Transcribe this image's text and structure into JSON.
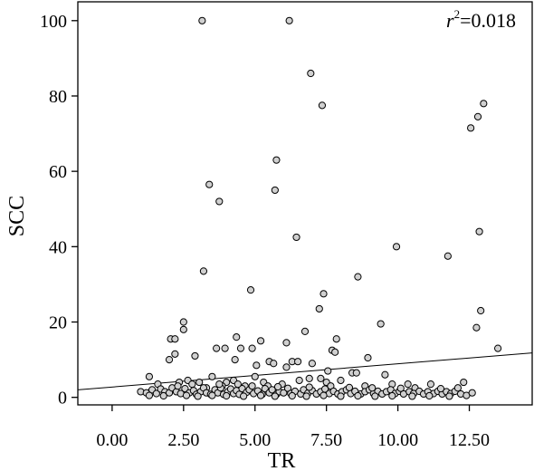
{
  "chart_data": {
    "type": "scatter",
    "title": "",
    "xlabel": "TR",
    "ylabel": "SCC",
    "xlim": [
      -1.2,
      14.7
    ],
    "ylim": [
      -2,
      105
    ],
    "xticks": [
      0,
      2.5,
      5,
      7.5,
      10,
      12.5
    ],
    "xtick_labels": [
      "0.00",
      "2.50",
      "5.00",
      "7.50",
      "10.00",
      "12.50"
    ],
    "yticks": [
      0,
      20,
      40,
      60,
      80,
      100
    ],
    "ytick_labels": [
      "0",
      "20",
      "40",
      "60",
      "80",
      "100"
    ],
    "grid": false,
    "legend": "none",
    "annotation": {
      "symbol": "r",
      "superscript": "2",
      "text": "=0.018"
    },
    "fit_line": {
      "x": [
        -1.2,
        14.7
      ],
      "y": [
        2.0,
        11.8
      ]
    },
    "marker_fill": "#d0d0d0",
    "marker_stroke": "#000000",
    "points": [
      [
        3.15,
        100
      ],
      [
        6.2,
        100
      ],
      [
        6.95,
        86
      ],
      [
        7.35,
        77.5
      ],
      [
        13.0,
        78
      ],
      [
        12.8,
        74.5
      ],
      [
        12.55,
        71.5
      ],
      [
        5.75,
        63
      ],
      [
        3.4,
        56.5
      ],
      [
        3.75,
        52
      ],
      [
        5.7,
        55
      ],
      [
        12.85,
        44
      ],
      [
        6.45,
        42.5
      ],
      [
        9.95,
        40
      ],
      [
        11.75,
        37.5
      ],
      [
        3.2,
        33.5
      ],
      [
        8.6,
        32
      ],
      [
        4.85,
        28.5
      ],
      [
        7.4,
        27.5
      ],
      [
        7.25,
        23.5
      ],
      [
        12.9,
        23
      ],
      [
        12.75,
        18.5
      ],
      [
        2.5,
        20
      ],
      [
        2.5,
        18
      ],
      [
        9.4,
        19.5
      ],
      [
        6.75,
        17.5
      ],
      [
        2.05,
        15.5
      ],
      [
        2.2,
        15.5
      ],
      [
        4.35,
        16
      ],
      [
        7.85,
        15.5
      ],
      [
        5.2,
        15
      ],
      [
        6.1,
        14.5
      ],
      [
        4.5,
        13
      ],
      [
        3.65,
        13
      ],
      [
        3.95,
        13
      ],
      [
        4.9,
        13
      ],
      [
        5.05,
        8.5
      ],
      [
        13.5,
        13
      ],
      [
        7.7,
        12.5
      ],
      [
        7.8,
        12
      ],
      [
        8.95,
        10.5
      ],
      [
        6.3,
        9.5
      ],
      [
        6.5,
        9.5
      ],
      [
        6.1,
        8
      ],
      [
        5.5,
        9.5
      ],
      [
        5.65,
        9
      ],
      [
        7.0,
        9
      ],
      [
        2.2,
        11.5
      ],
      [
        2.0,
        10
      ],
      [
        2.9,
        11
      ],
      [
        7.55,
        7
      ],
      [
        8.4,
        6.5
      ],
      [
        8.55,
        6.5
      ],
      [
        4.3,
        10
      ],
      [
        6.9,
        5
      ],
      [
        7.3,
        5
      ],
      [
        9.55,
        6
      ],
      [
        1.3,
        5.5
      ],
      [
        2.35,
        4
      ],
      [
        2.65,
        4.5
      ],
      [
        3.05,
        4
      ],
      [
        3.5,
        5.5
      ],
      [
        4.0,
        4
      ],
      [
        4.25,
        4.5
      ],
      [
        5.0,
        5.5
      ],
      [
        5.3,
        4
      ],
      [
        6.55,
        4.5
      ],
      [
        7.5,
        4
      ],
      [
        8.0,
        4.5
      ],
      [
        9.8,
        3.5
      ],
      [
        10.35,
        3.5
      ],
      [
        11.15,
        3.5
      ],
      [
        12.3,
        4
      ],
      [
        1.6,
        3.5
      ],
      [
        2.8,
        3.5
      ],
      [
        3.3,
        2.5
      ],
      [
        3.85,
        3
      ],
      [
        4.65,
        3
      ],
      [
        5.45,
        3
      ],
      [
        5.95,
        3.5
      ],
      [
        7.65,
        3
      ],
      [
        8.85,
        3
      ],
      [
        10.6,
        2.5
      ],
      [
        1.0,
        1.5
      ],
      [
        1.2,
        1.2
      ],
      [
        1.4,
        2
      ],
      [
        1.55,
        1
      ],
      [
        1.7,
        2.2
      ],
      [
        1.85,
        1.5
      ],
      [
        2.0,
        1.2
      ],
      [
        2.1,
        2.5
      ],
      [
        2.25,
        1.5
      ],
      [
        2.4,
        1
      ],
      [
        2.55,
        2.3
      ],
      [
        2.7,
        1.2
      ],
      [
        2.85,
        1.8
      ],
      [
        2.95,
        0.8
      ],
      [
        3.1,
        1.5
      ],
      [
        3.2,
        2.5
      ],
      [
        3.3,
        1.2
      ],
      [
        3.45,
        0.8
      ],
      [
        3.6,
        2
      ],
      [
        3.7,
        1.2
      ],
      [
        3.8,
        2.5
      ],
      [
        3.9,
        0.8
      ],
      [
        4.05,
        1.5
      ],
      [
        4.15,
        2.2
      ],
      [
        4.25,
        1
      ],
      [
        4.35,
        1.8
      ],
      [
        4.45,
        0.8
      ],
      [
        4.55,
        2.3
      ],
      [
        4.7,
        1.3
      ],
      [
        4.8,
        2
      ],
      [
        4.95,
        1
      ],
      [
        5.1,
        1.7
      ],
      [
        5.25,
        0.8
      ],
      [
        5.35,
        2.3
      ],
      [
        5.5,
        1.2
      ],
      [
        5.6,
        2
      ],
      [
        5.75,
        0.8
      ],
      [
        5.85,
        1.5
      ],
      [
        6.0,
        1.2
      ],
      [
        6.15,
        2.4
      ],
      [
        6.25,
        1
      ],
      [
        6.4,
        1.6
      ],
      [
        6.6,
        0.9
      ],
      [
        6.7,
        2
      ],
      [
        6.85,
        1.1
      ],
      [
        7.0,
        1.8
      ],
      [
        7.15,
        0.9
      ],
      [
        7.3,
        1.5
      ],
      [
        7.45,
        2.2
      ],
      [
        7.6,
        1
      ],
      [
        7.75,
        1.6
      ],
      [
        7.9,
        0.9
      ],
      [
        8.05,
        1.5
      ],
      [
        8.2,
        2
      ],
      [
        8.35,
        1
      ],
      [
        8.5,
        1.6
      ],
      [
        8.7,
        0.9
      ],
      [
        8.85,
        1.5
      ],
      [
        9.0,
        2
      ],
      [
        9.15,
        1
      ],
      [
        9.3,
        1.6
      ],
      [
        9.45,
        0.9
      ],
      [
        9.6,
        1.5
      ],
      [
        9.75,
        2
      ],
      [
        9.9,
        1
      ],
      [
        10.05,
        1.6
      ],
      [
        10.2,
        0.9
      ],
      [
        10.4,
        1.5
      ],
      [
        10.55,
        1
      ],
      [
        10.75,
        1.6
      ],
      [
        10.9,
        0.9
      ],
      [
        11.05,
        1.5
      ],
      [
        11.25,
        1
      ],
      [
        11.4,
        1.6
      ],
      [
        11.55,
        0.9
      ],
      [
        11.7,
        1.5
      ],
      [
        11.85,
        1
      ],
      [
        12.0,
        1.6
      ],
      [
        12.2,
        0.9
      ],
      [
        12.4,
        0.5
      ],
      [
        12.6,
        1.2
      ],
      [
        1.3,
        0.5
      ],
      [
        1.8,
        0.4
      ],
      [
        2.6,
        0.5
      ],
      [
        3.0,
        0.3
      ],
      [
        3.5,
        0.5
      ],
      [
        4.0,
        0.4
      ],
      [
        4.6,
        0.3
      ],
      [
        5.2,
        0.5
      ],
      [
        5.7,
        0.3
      ],
      [
        6.3,
        0.4
      ],
      [
        6.8,
        0.3
      ],
      [
        7.4,
        0.5
      ],
      [
        8.0,
        0.3
      ],
      [
        8.6,
        0.4
      ],
      [
        9.2,
        0.3
      ],
      [
        9.8,
        0.4
      ],
      [
        10.5,
        0.3
      ],
      [
        11.1,
        0.4
      ],
      [
        11.8,
        0.3
      ],
      [
        2.3,
        3
      ],
      [
        3.75,
        3.5
      ],
      [
        4.4,
        3.5
      ],
      [
        4.9,
        3
      ],
      [
        5.8,
        2.8
      ],
      [
        6.9,
        2.7
      ],
      [
        8.3,
        2.6
      ],
      [
        9.1,
        2.5
      ],
      [
        10.1,
        2.4
      ],
      [
        11.5,
        2.3
      ],
      [
        12.1,
        2.5
      ]
    ]
  }
}
